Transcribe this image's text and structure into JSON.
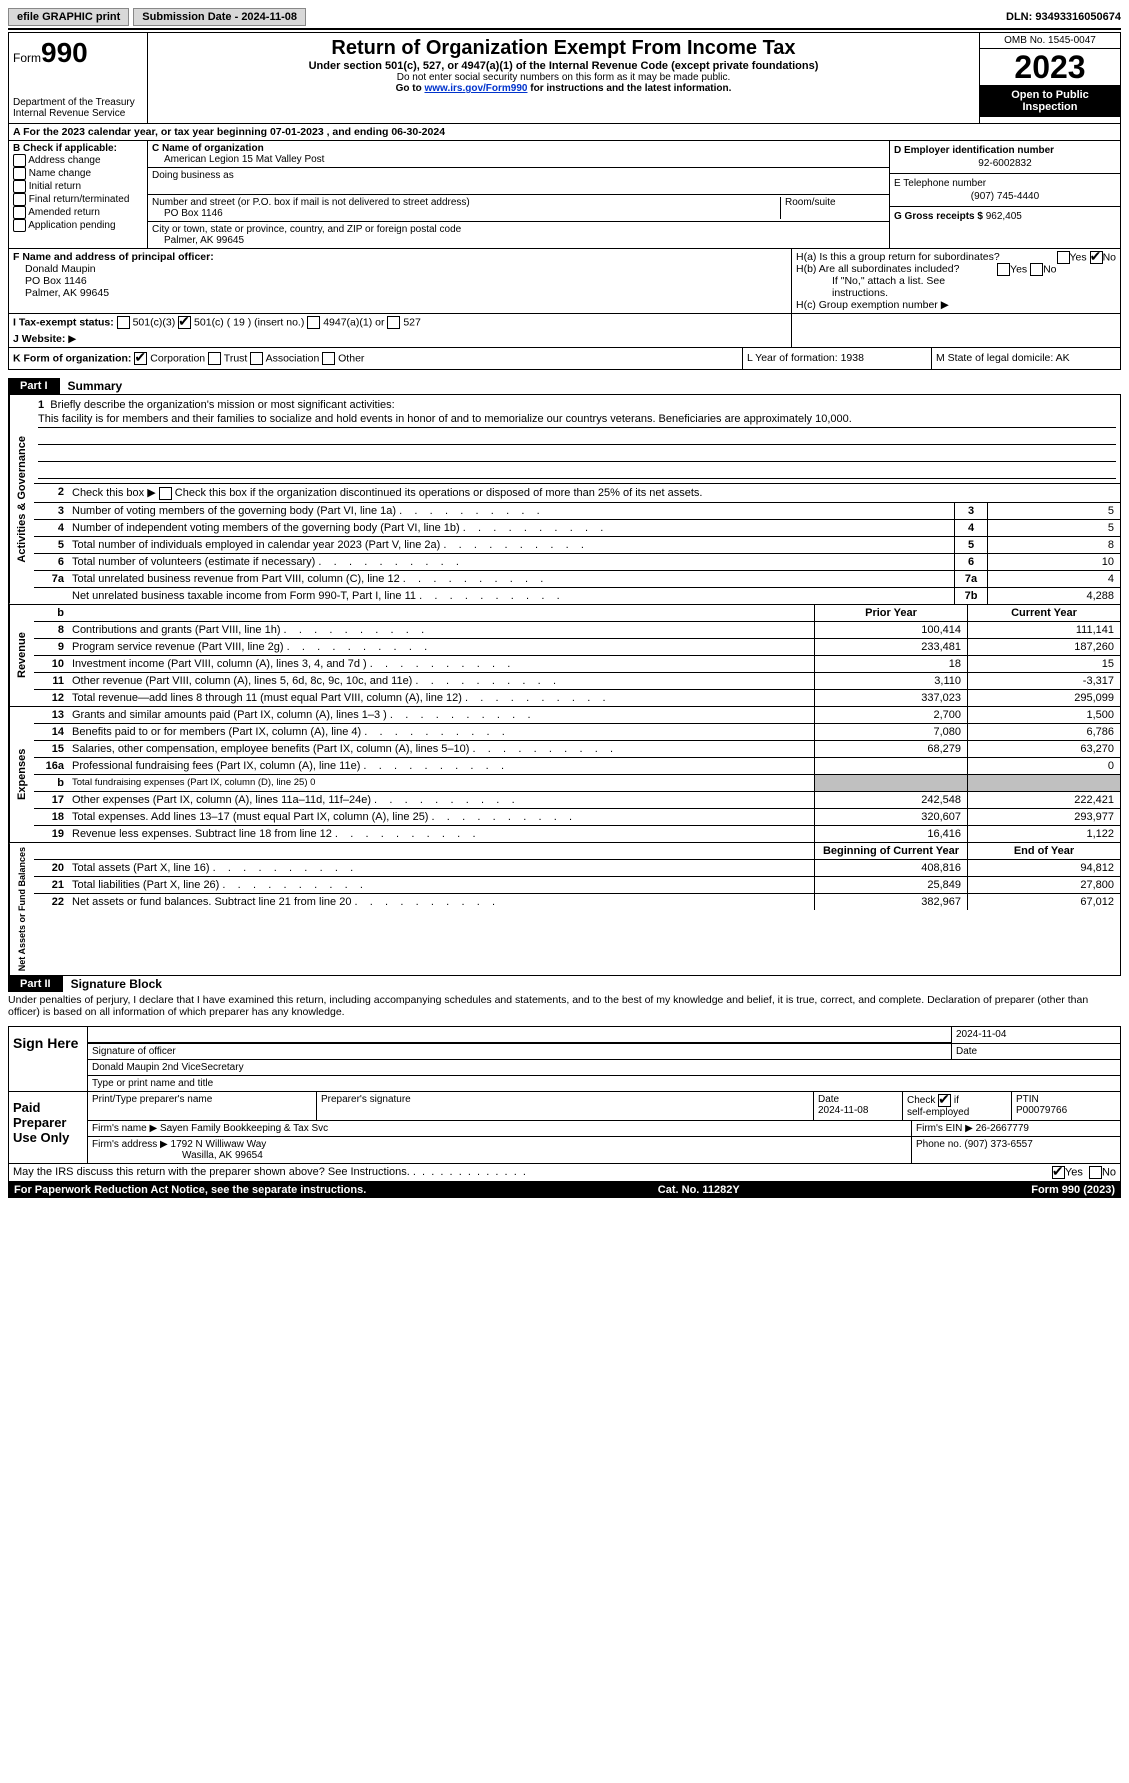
{
  "topbar": {
    "efile": "efile GRAPHIC print",
    "submission": "Submission Date - 2024-11-08",
    "dln": "DLN: 93493316050674"
  },
  "header": {
    "form_label": "Form",
    "form_no": "990",
    "title": "Return of Organization Exempt From Income Tax",
    "subtitle": "Under section 501(c), 527, or 4947(a)(1) of the Internal Revenue Code (except private foundations)",
    "warn": "Do not enter social security numbers on this form as it may be made public.",
    "goto": "Go to ",
    "link": "www.irs.gov/Form990",
    "goto2": " for instructions and the latest information.",
    "dept": "Department of the Treasury",
    "irs": "Internal Revenue Service",
    "omb": "OMB No. 1545-0047",
    "year": "2023",
    "inspection": "Open to Public Inspection"
  },
  "row_a": "A For the 2023 calendar year, or tax year beginning 07-01-2023    , and ending 06-30-2024",
  "col_b": {
    "label": "B Check if applicable:",
    "opts": [
      "Address change",
      "Name change",
      "Initial return",
      "Final return/terminated",
      "Amended return",
      "Application pending"
    ]
  },
  "col_c": {
    "name_label": "C Name of organization",
    "name": "American Legion 15 Mat Valley Post",
    "dba_label": "Doing business as",
    "street_label": "Number and street (or P.O. box if mail is not delivered to street address)",
    "street": "PO Box 1146",
    "room_label": "Room/suite",
    "city_label": "City or town, state or province, country, and ZIP or foreign postal code",
    "city": "Palmer, AK  99645"
  },
  "col_d": {
    "ein_label": "D Employer identification number",
    "ein": "92-6002832",
    "tel_label": "E Telephone number",
    "tel": "(907) 745-4440",
    "gross_label": "G Gross receipts $",
    "gross": "962,405"
  },
  "section_f": {
    "label": "F  Name and address of principal officer:",
    "name": "Donald Maupin",
    "addr1": "PO Box 1146",
    "addr2": "Palmer, AK  99645"
  },
  "section_h": {
    "ha": "H(a)  Is this a group return for subordinates?",
    "hb": "H(b)  Are all subordinates included?",
    "hb_note": "If \"No,\" attach a list. See instructions.",
    "hc": "H(c)  Group exemption number "
  },
  "row_i": {
    "label": "I     Tax-exempt status:",
    "c3": "501(c)(3)",
    "c": "501(c) ( 19 ) (insert no.)",
    "a1": "4947(a)(1) or",
    "s527": "527"
  },
  "row_j": "J     Website:  ",
  "row_k": "K Form of organization:",
  "k_opts": [
    "Corporation",
    "Trust",
    "Association",
    "Other"
  ],
  "row_l": "L Year of formation: 1938",
  "row_m": "M State of legal domicile: AK",
  "part1": {
    "tab": "Part I",
    "title": "Summary"
  },
  "side_labels": {
    "ag": "Activities & Governance",
    "rev": "Revenue",
    "exp": "Expenses",
    "na": "Net Assets or Fund Balances"
  },
  "mission": {
    "l1_label": "Briefly describe the organization's mission or most significant activities:",
    "text": "This facility is for members and their families to socialize and hold events in honor of and to memorialize our countrys veterans. Beneficiaries are approximately 10,000."
  },
  "line2": "Check this box       if the organization discontinued its operations or disposed of more than 25% of its net assets.",
  "gov_lines": [
    {
      "n": "3",
      "d": "Number of voting members of the governing body (Part VI, line 1a)",
      "box": "3",
      "v": "5"
    },
    {
      "n": "4",
      "d": "Number of independent voting members of the governing body (Part VI, line 1b)",
      "box": "4",
      "v": "5"
    },
    {
      "n": "5",
      "d": "Total number of individuals employed in calendar year 2023 (Part V, line 2a)",
      "box": "5",
      "v": "8"
    },
    {
      "n": "6",
      "d": "Total number of volunteers (estimate if necessary)",
      "box": "6",
      "v": "10"
    },
    {
      "n": "7a",
      "d": "Total unrelated business revenue from Part VIII, column (C), line 12",
      "box": "7a",
      "v": "4"
    },
    {
      "n": "",
      "d": "Net unrelated business taxable income from Form 990-T, Part I, line 11",
      "box": "7b",
      "v": "4,288"
    }
  ],
  "col_hdrs": {
    "prior": "Prior Year",
    "current": "Current Year"
  },
  "rev_lines": [
    {
      "n": "8",
      "d": "Contributions and grants (Part VIII, line 1h)",
      "p": "100,414",
      "c": "111,141"
    },
    {
      "n": "9",
      "d": "Program service revenue (Part VIII, line 2g)",
      "p": "233,481",
      "c": "187,260"
    },
    {
      "n": "10",
      "d": "Investment income (Part VIII, column (A), lines 3, 4, and 7d )",
      "p": "18",
      "c": "15"
    },
    {
      "n": "11",
      "d": "Other revenue (Part VIII, column (A), lines 5, 6d, 8c, 9c, 10c, and 11e)",
      "p": "3,110",
      "c": "-3,317"
    },
    {
      "n": "12",
      "d": "Total revenue—add lines 8 through 11 (must equal Part VIII, column (A), line 12)",
      "p": "337,023",
      "c": "295,099"
    }
  ],
  "exp_lines": [
    {
      "n": "13",
      "d": "Grants and similar amounts paid (Part IX, column (A), lines 1–3 )",
      "p": "2,700",
      "c": "1,500"
    },
    {
      "n": "14",
      "d": "Benefits paid to or for members (Part IX, column (A), line 4)",
      "p": "7,080",
      "c": "6,786"
    },
    {
      "n": "15",
      "d": "Salaries, other compensation, employee benefits (Part IX, column (A), lines 5–10)",
      "p": "68,279",
      "c": "63,270"
    },
    {
      "n": "16a",
      "d": "Professional fundraising fees (Part IX, column (A), line 11e)",
      "p": "",
      "c": "0"
    },
    {
      "n": "b",
      "d": "Total fundraising expenses (Part IX, column (D), line 25) 0",
      "p": "SHADE",
      "c": "SHADE",
      "small": true
    },
    {
      "n": "17",
      "d": "Other expenses (Part IX, column (A), lines 11a–11d, 11f–24e)",
      "p": "242,548",
      "c": "222,421"
    },
    {
      "n": "18",
      "d": "Total expenses. Add lines 13–17 (must equal Part IX, column (A), line 25)",
      "p": "320,607",
      "c": "293,977"
    },
    {
      "n": "19",
      "d": "Revenue less expenses. Subtract line 18 from line 12",
      "p": "16,416",
      "c": "1,122"
    }
  ],
  "na_hdrs": {
    "beg": "Beginning of Current Year",
    "end": "End of Year"
  },
  "na_lines": [
    {
      "n": "20",
      "d": "Total assets (Part X, line 16)",
      "p": "408,816",
      "c": "94,812"
    },
    {
      "n": "21",
      "d": "Total liabilities (Part X, line 26)",
      "p": "25,849",
      "c": "27,800"
    },
    {
      "n": "22",
      "d": "Net assets or fund balances. Subtract line 21 from line 20",
      "p": "382,967",
      "c": "67,012"
    }
  ],
  "part2": {
    "tab": "Part II",
    "title": "Signature Block"
  },
  "perjury": "Under penalties of perjury, I declare that I have examined this return, including accompanying schedules and statements, and to the best of my knowledge and belief, it is true, correct, and complete. Declaration of preparer (other than officer) is based on all information of which preparer has any knowledge.",
  "sign": {
    "label": "Sign Here",
    "sig_officer": "Signature of officer",
    "date_val": "2024-11-04",
    "date_lbl": "Date",
    "name": "Donald Maupin  2nd ViceSecretary",
    "type_lbl": "Type or print name and title"
  },
  "paid": {
    "label": "Paid Preparer Use Only",
    "print_lbl": "Print/Type preparer's name",
    "sig_lbl": "Preparer's signature",
    "date_lbl": "Date",
    "date_val": "2024-11-08",
    "check_lbl": "Check         if self-employed",
    "ptin_lbl": "PTIN",
    "ptin": "P00079766",
    "firm_name_lbl": "Firm's name      ",
    "firm_name": "Sayen Family Bookkeeping & Tax Svc",
    "firm_ein_lbl": "Firm's EIN  ",
    "firm_ein": "26-2667779",
    "firm_addr_lbl": "Firm's address ",
    "firm_addr": "1792 N Williwaw Way",
    "firm_city": "Wasilla, AK  99654",
    "phone_lbl": "Phone no. ",
    "phone": "(907) 373-6557"
  },
  "discuss": "May the IRS discuss this return with the preparer shown above? See Instructions.",
  "footer": {
    "pra": "For Paperwork Reduction Act Notice, see the separate instructions.",
    "cat": "Cat. No. 11282Y",
    "form": "Form 990 (2023)"
  }
}
